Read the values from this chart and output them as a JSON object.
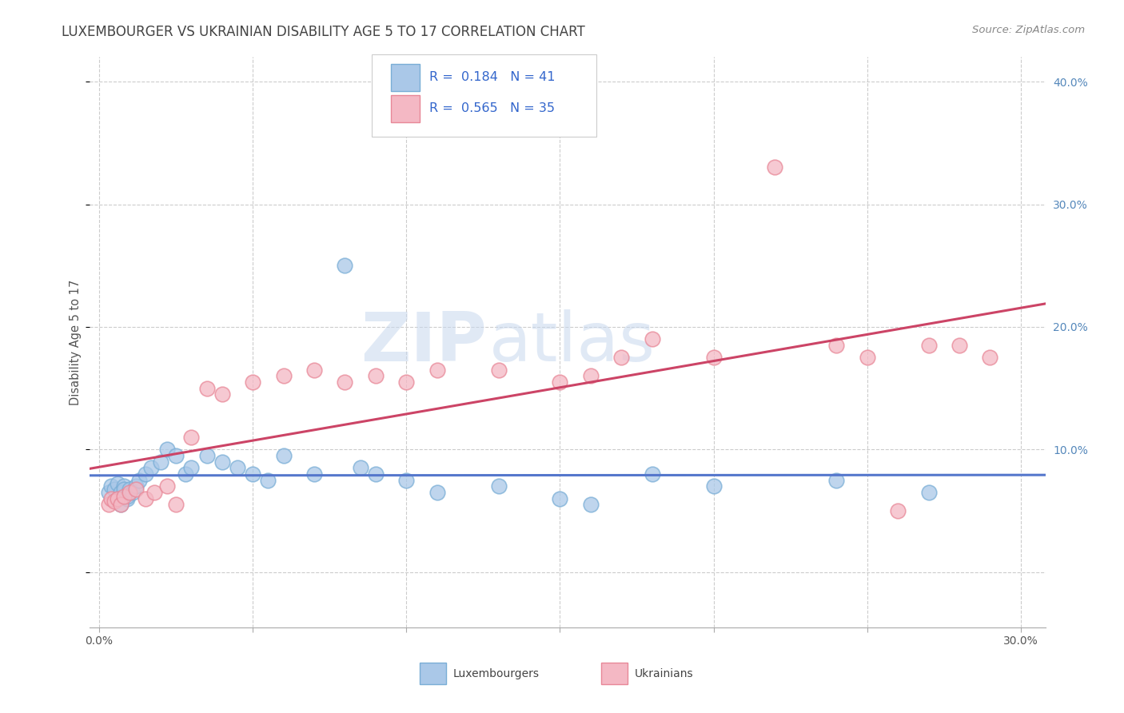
{
  "title": "LUXEMBOURGER VS UKRAINIAN DISABILITY AGE 5 TO 17 CORRELATION CHART",
  "source_text": "Source: ZipAtlas.com",
  "ylabel": "Disability Age 5 to 17",
  "xlim": [
    -0.003,
    0.308
  ],
  "ylim": [
    -0.045,
    0.42
  ],
  "bg_color": "#ffffff",
  "grid_color": "#cccccc",
  "color_blue_edge": "#7aaed6",
  "color_blue_fill": "#aac8e8",
  "color_pink_edge": "#e88898",
  "color_pink_fill": "#f4b8c4",
  "color_trend_blue": "#5577cc",
  "color_trend_pink": "#cc4466",
  "color_text_blue": "#3366cc",
  "color_right_tick": "#5588bb",
  "lux_x": [
    0.003,
    0.004,
    0.005,
    0.006,
    0.006,
    0.007,
    0.007,
    0.008,
    0.008,
    0.009,
    0.009,
    0.01,
    0.011,
    0.012,
    0.013,
    0.015,
    0.017,
    0.02,
    0.022,
    0.025,
    0.028,
    0.03,
    0.035,
    0.04,
    0.045,
    0.05,
    0.055,
    0.06,
    0.07,
    0.08,
    0.085,
    0.09,
    0.1,
    0.11,
    0.13,
    0.15,
    0.16,
    0.18,
    0.2,
    0.24,
    0.27
  ],
  "lux_y": [
    0.065,
    0.07,
    0.068,
    0.072,
    0.06,
    0.065,
    0.055,
    0.07,
    0.068,
    0.06,
    0.062,
    0.068,
    0.065,
    0.07,
    0.075,
    0.08,
    0.085,
    0.09,
    0.1,
    0.095,
    0.08,
    0.085,
    0.095,
    0.09,
    0.085,
    0.08,
    0.075,
    0.095,
    0.08,
    0.25,
    0.085,
    0.08,
    0.075,
    0.065,
    0.07,
    0.06,
    0.055,
    0.08,
    0.07,
    0.075,
    0.065
  ],
  "ukr_x": [
    0.003,
    0.004,
    0.005,
    0.006,
    0.007,
    0.008,
    0.01,
    0.012,
    0.015,
    0.018,
    0.022,
    0.025,
    0.03,
    0.035,
    0.04,
    0.05,
    0.06,
    0.07,
    0.08,
    0.09,
    0.1,
    0.11,
    0.13,
    0.15,
    0.16,
    0.17,
    0.18,
    0.2,
    0.22,
    0.24,
    0.25,
    0.26,
    0.27,
    0.28,
    0.29
  ],
  "ukr_y": [
    0.055,
    0.06,
    0.058,
    0.06,
    0.055,
    0.062,
    0.065,
    0.068,
    0.06,
    0.065,
    0.07,
    0.055,
    0.11,
    0.15,
    0.145,
    0.155,
    0.16,
    0.165,
    0.155,
    0.16,
    0.155,
    0.165,
    0.165,
    0.155,
    0.16,
    0.175,
    0.19,
    0.175,
    0.33,
    0.185,
    0.175,
    0.05,
    0.185,
    0.185,
    0.175
  ]
}
